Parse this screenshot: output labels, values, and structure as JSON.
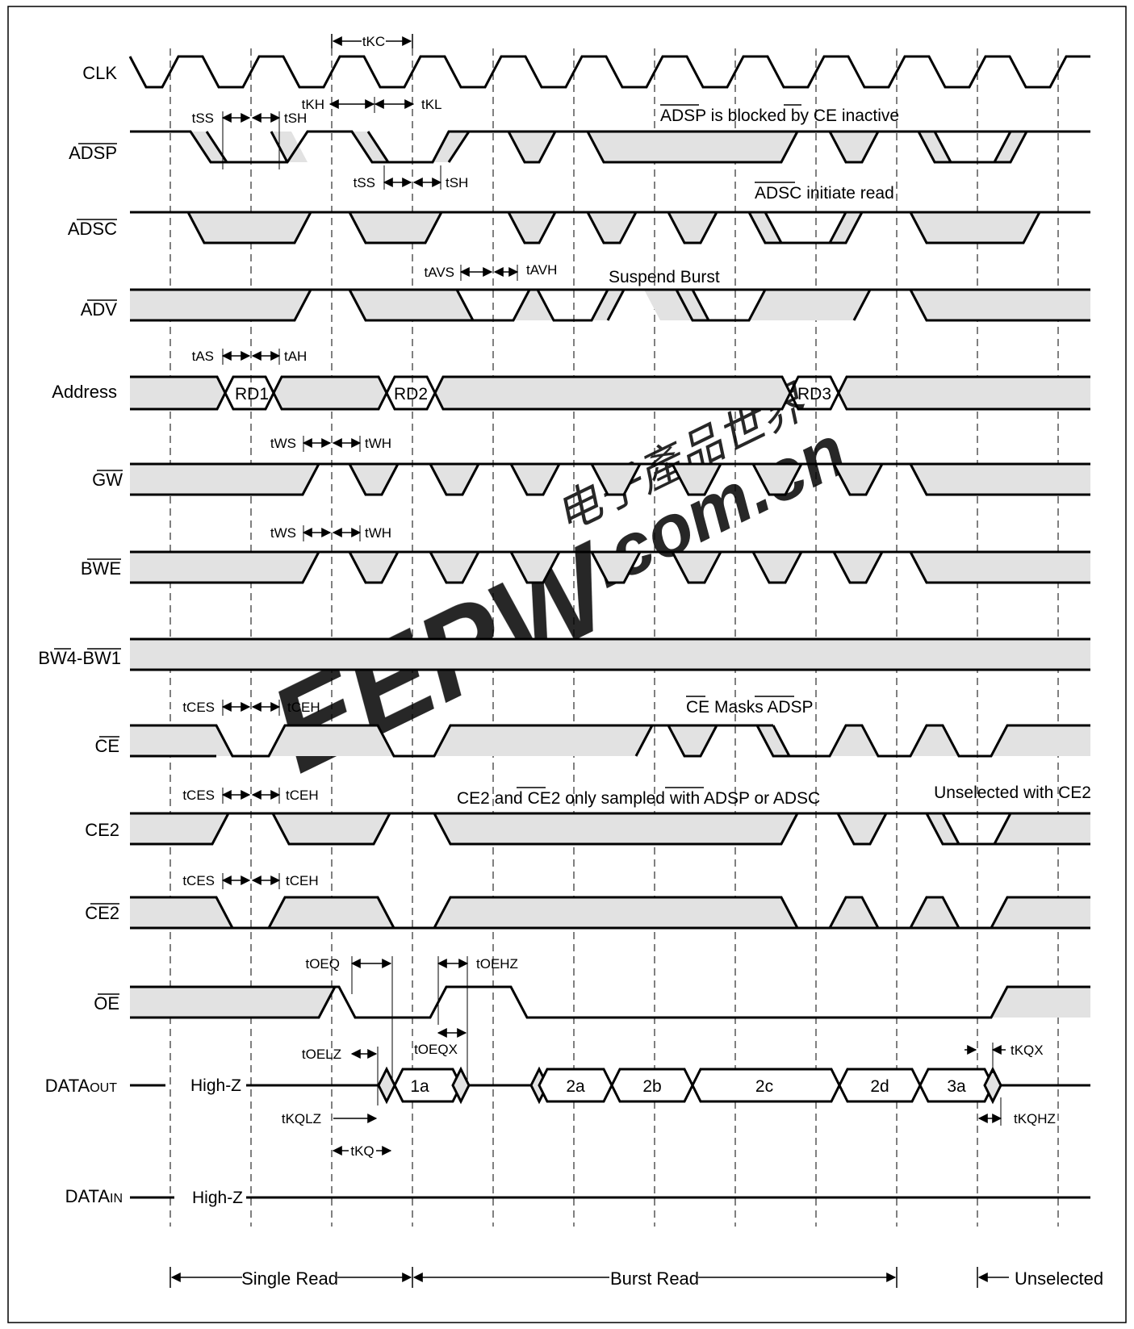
{
  "signals": {
    "clk": "CLK",
    "adsp": "ADSP",
    "adsc": "ADSC",
    "adv": "ADV",
    "address": "Address",
    "gw": "GW",
    "bwe": "BWE",
    "bw": "BW4-BW1",
    "ce": "CE",
    "ce2": "CE2",
    "ce2n": "CE2",
    "oe": "OE",
    "dataout_main": "DATA",
    "dataout_sub": "OUT",
    "datain_main": "DATA",
    "datain_sub": "IN"
  },
  "timing": {
    "tkc": "tKC",
    "tkh": "tKH",
    "tkl": "tKL",
    "tss1": "tSS",
    "tsh1": "tSH",
    "tss2": "tSS",
    "tsh2": "tSH",
    "tavs": "tAVS",
    "tavh": "tAVH",
    "tas": "tAS",
    "tah": "tAH",
    "tws1": "tWS",
    "twh1": "tWH",
    "tws2": "tWS",
    "twh2": "tWH",
    "tces1": "tCES",
    "tceh1": "tCEH",
    "tces2": "tCES",
    "tceh2": "tCEH",
    "tces3": "tCES",
    "tceh3": "tCEH",
    "toeq": "tOEQ",
    "toehz": "tOEHZ",
    "toelz": "tOELZ",
    "toeqx": "tOEQX",
    "tkqlz": "tKQLZ",
    "tkq": "tKQ",
    "tkqx": "tKQX",
    "tkqhz": "tKQHZ"
  },
  "notes": {
    "adsp_blocked_a": "ADSP",
    "adsp_blocked_b": " is blocked by ",
    "adsp_blocked_c": "CE",
    "adsp_blocked_d": " inactive",
    "adsc_init_a": "ADSC",
    "adsc_init_b": " initiate read",
    "suspend": "Suspend Burst",
    "ce_masks_a": "CE",
    "ce_masks_b": " Masks ",
    "ce_masks_c": "ADSP",
    "ce2_only_a": "CE2 and ",
    "ce2_only_b": "CE2",
    "ce2_only_c": " only sampled with ",
    "ce2_only_d": "ADSP",
    "ce2_only_e": " or ADSC",
    "unselected_ce2": "Unselected with CE2",
    "highz_out": "High-Z",
    "highz_in": "High-Z"
  },
  "address_cells": [
    "RD1",
    "RD2",
    "RD3"
  ],
  "data_cells": [
    "1a",
    "2a",
    "2b",
    "2c",
    "2d",
    "3a"
  ],
  "phases": {
    "single": "Single Read",
    "burst": "Burst Read",
    "unselected": "Unselected"
  },
  "watermark": {
    "main": "EEPW",
    "domain": ".com.cn",
    "chinese": "电子產品世界"
  },
  "colors": {
    "ink": "#000000",
    "shade": "#e2e2e2",
    "watermark": "#e8474d",
    "watermark_gray": "#b4b4b4"
  }
}
